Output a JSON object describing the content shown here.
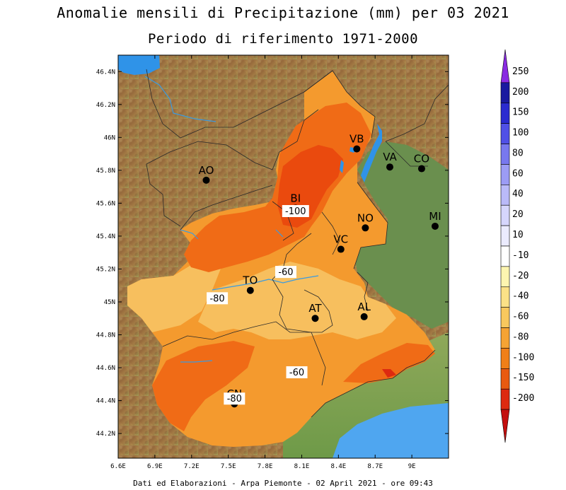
{
  "title": "Anomalie mensili di Precipitazione (mm) per 03 2021",
  "subtitle": "Periodo di riferimento 1971-2000",
  "footer": "Dati ed Elaborazioni - Arpa Piemonte - 02 April 2021 - ore 09:43",
  "axes": {
    "lon_ticks": [
      "6.6E",
      "6.9E",
      "7.2E",
      "7.5E",
      "7.8E",
      "8.1E",
      "8.4E",
      "8.7E",
      "9E"
    ],
    "lat_ticks": [
      "46.4N",
      "46.2N",
      "46N",
      "45.8N",
      "45.6N",
      "45.4N",
      "45.2N",
      "45N",
      "44.8N",
      "44.6N",
      "44.4N",
      "44.2N"
    ],
    "lon_range": [
      6.6,
      9.3
    ],
    "lat_range": [
      44.05,
      46.5
    ]
  },
  "cities": [
    {
      "name": "VB",
      "lon": 8.55,
      "lat": 45.93
    },
    {
      "name": "VA",
      "lon": 8.82,
      "lat": 45.82
    },
    {
      "name": "CO",
      "lon": 9.08,
      "lat": 45.81
    },
    {
      "name": "AO",
      "lon": 7.32,
      "lat": 45.74
    },
    {
      "name": "BI",
      "lon": 8.05,
      "lat": 45.57
    },
    {
      "name": "NO",
      "lon": 8.62,
      "lat": 45.45
    },
    {
      "name": "MI",
      "lon": 9.19,
      "lat": 45.46
    },
    {
      "name": "VC",
      "lon": 8.42,
      "lat": 45.32
    },
    {
      "name": "TO",
      "lon": 7.68,
      "lat": 45.07
    },
    {
      "name": "AT",
      "lon": 8.21,
      "lat": 44.9
    },
    {
      "name": "AL",
      "lon": 8.61,
      "lat": 44.91
    },
    {
      "name": "CN",
      "lon": 7.55,
      "lat": 44.38
    }
  ],
  "contour_labels": [
    {
      "text": "-100",
      "lon": 8.05,
      "lat": 45.55
    },
    {
      "text": "-60",
      "lon": 7.97,
      "lat": 45.18
    },
    {
      "text": "-80",
      "lon": 7.41,
      "lat": 45.02
    },
    {
      "text": "-60",
      "lon": 8.06,
      "lat": 44.57
    },
    {
      "text": "-80",
      "lon": 7.55,
      "lat": 44.41
    }
  ],
  "legend": {
    "labels": [
      "250",
      "200",
      "150",
      "100",
      "80",
      "60",
      "40",
      "20",
      "10",
      "-10",
      "-20",
      "-40",
      "-60",
      "-80",
      "-100",
      "-150",
      "-200"
    ],
    "colors": [
      "#8a2be2",
      "#1a1aa0",
      "#2b2bd0",
      "#5050e6",
      "#7878ee",
      "#9c9cf4",
      "#babaf8",
      "#d6d6fc",
      "#ebebfe",
      "#ffffff",
      "#fdf5b0",
      "#fbe187",
      "#f8c85e",
      "#f5a334",
      "#f07f18",
      "#e95a10",
      "#dd2a10",
      "#c40f0f"
    ]
  },
  "colors": {
    "anom_light": "#f7bf5e",
    "anom_mid": "#f49a2e",
    "anom_strong": "#f06b16",
    "anom_severe": "#ea4a0e",
    "lombardy_green": "#6a8f4e",
    "sea": "#4fa6f0",
    "lake": "#2f93e8"
  }
}
